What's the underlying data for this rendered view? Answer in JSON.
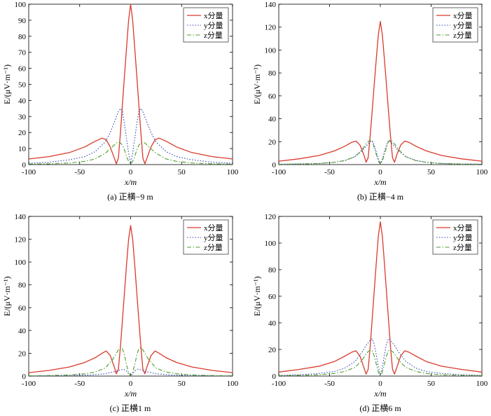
{
  "legend_labels": [
    "x分量",
    "y分量",
    "z分量"
  ],
  "colors": {
    "x": "#d93a2b",
    "y": "#3c4fb4",
    "z": "#4f9e2a"
  },
  "chart_data": [
    {
      "type": "line",
      "caption": "(a) 正横−9 m",
      "xlabel": "x/m",
      "ylabel": "E/(μV·m⁻¹)",
      "xlim": [
        -100,
        100
      ],
      "ylim": [
        0,
        100
      ],
      "xticks": [
        -100,
        -50,
        0,
        50,
        100
      ],
      "yticks": [
        0,
        10,
        20,
        30,
        40,
        50,
        60,
        70,
        80,
        90,
        100
      ],
      "legend": "top-right",
      "grid": false,
      "series": [
        {
          "name": "x分量",
          "style": "solid",
          "x": [
            -100,
            -80,
            -60,
            -45,
            -35,
            -28,
            -24,
            -20,
            -16,
            -14,
            -12,
            -10,
            -8,
            -6,
            -4,
            -2,
            0,
            2,
            4,
            6,
            8,
            10,
            12,
            14,
            16,
            20,
            24,
            28,
            35,
            45,
            60,
            80,
            100
          ],
          "y": [
            3.5,
            5,
            7.5,
            11,
            14.5,
            16.5,
            15.5,
            11,
            4,
            0.5,
            4,
            20,
            38,
            56,
            73,
            90,
            100,
            90,
            73,
            56,
            38,
            20,
            4,
            0.5,
            4,
            11,
            15.5,
            16.5,
            14.5,
            11,
            7.5,
            5,
            3.5
          ]
        },
        {
          "name": "y分量",
          "style": "dotted",
          "x": [
            -100,
            -80,
            -60,
            -45,
            -35,
            -25,
            -20,
            -15,
            -12,
            -10,
            -8,
            -6,
            -4,
            -2,
            0,
            2,
            4,
            6,
            8,
            10,
            12,
            15,
            20,
            25,
            35,
            45,
            60,
            80,
            100
          ],
          "y": [
            0.8,
            1.5,
            3,
            5,
            8,
            14,
            20,
            28,
            33,
            35,
            33,
            25,
            16,
            7,
            1,
            7,
            16,
            25,
            33,
            35,
            33,
            28,
            20,
            14,
            8,
            5,
            3,
            1.5,
            0.8
          ]
        },
        {
          "name": "z分量",
          "style": "dashdot",
          "x": [
            -100,
            -80,
            -60,
            -45,
            -35,
            -25,
            -18,
            -14,
            -12,
            -10,
            -8,
            -6,
            -4,
            -2,
            0,
            2,
            4,
            6,
            8,
            10,
            12,
            14,
            18,
            25,
            35,
            45,
            60,
            80,
            100
          ],
          "y": [
            0.3,
            0.5,
            1,
            2,
            3.5,
            7,
            11,
            13.5,
            14,
            13.5,
            12,
            9,
            5,
            2,
            0.3,
            2,
            5,
            9,
            12,
            13.5,
            14,
            13.5,
            11,
            7,
            3.5,
            2,
            1,
            0.5,
            0.3
          ]
        }
      ]
    },
    {
      "type": "line",
      "caption": "(b) 正横−4 m",
      "xlabel": "x/m",
      "ylabel": "E/(μV·m⁻¹)",
      "xlim": [
        -100,
        100
      ],
      "ylim": [
        0,
        140
      ],
      "xticks": [
        -100,
        -50,
        0,
        50,
        100
      ],
      "yticks": [
        0,
        20,
        40,
        60,
        80,
        100,
        120,
        140
      ],
      "legend": "top-right",
      "grid": false,
      "series": [
        {
          "name": "x分量",
          "style": "solid",
          "x": [
            -100,
            -80,
            -60,
            -45,
            -35,
            -28,
            -24,
            -20,
            -16,
            -14,
            -12,
            -10,
            -8,
            -6,
            -4,
            -2,
            0,
            2,
            4,
            6,
            8,
            10,
            12,
            14,
            16,
            20,
            24,
            28,
            35,
            45,
            60,
            80,
            100
          ],
          "y": [
            3,
            5,
            8,
            12,
            16,
            19.5,
            20.5,
            17,
            8,
            2,
            6,
            25,
            47,
            70,
            92,
            113,
            125,
            113,
            92,
            70,
            47,
            25,
            6,
            2,
            8,
            17,
            20.5,
            19.5,
            16,
            12,
            8,
            5,
            3
          ]
        },
        {
          "name": "y分量",
          "style": "dotted",
          "x": [
            -100,
            -80,
            -60,
            -45,
            -35,
            -25,
            -18,
            -14,
            -10,
            -8,
            -6,
            -4,
            -2,
            0,
            2,
            4,
            6,
            8,
            10,
            14,
            18,
            25,
            35,
            45,
            60,
            80,
            100
          ],
          "y": [
            0.3,
            0.6,
            1,
            2,
            3.5,
            7,
            12,
            16,
            20,
            21,
            17,
            11,
            5,
            0.5,
            5,
            11,
            17,
            21,
            20,
            16,
            12,
            7,
            3.5,
            2,
            1,
            0.6,
            0.3
          ]
        },
        {
          "name": "z分量",
          "style": "dashdot",
          "x": [
            -100,
            -80,
            -60,
            -45,
            -35,
            -25,
            -18,
            -14,
            -12,
            -10,
            -8,
            -6,
            -4,
            -2,
            0,
            2,
            4,
            6,
            8,
            10,
            12,
            14,
            18,
            25,
            35,
            45,
            60,
            80,
            100
          ],
          "y": [
            0.3,
            0.5,
            1,
            2,
            3.5,
            7,
            13,
            18,
            20,
            21.5,
            20,
            15,
            9,
            3,
            0.3,
            3,
            9,
            15,
            20,
            21.5,
            20,
            18,
            13,
            7,
            3.5,
            2,
            1,
            0.5,
            0.3
          ]
        }
      ]
    },
    {
      "type": "line",
      "caption": "(c) 正横1 m",
      "xlabel": "x/m",
      "ylabel": "E/(μV·m⁻¹)",
      "xlim": [
        -100,
        100
      ],
      "ylim": [
        0,
        140
      ],
      "xticks": [
        -100,
        -50,
        0,
        50,
        100
      ],
      "yticks": [
        0,
        20,
        40,
        60,
        80,
        100,
        120,
        140
      ],
      "legend": "top-right",
      "grid": false,
      "series": [
        {
          "name": "x分量",
          "style": "solid",
          "x": [
            -100,
            -80,
            -60,
            -45,
            -35,
            -28,
            -24,
            -20,
            -16,
            -14,
            -12,
            -10,
            -8,
            -6,
            -4,
            -2,
            0,
            2,
            4,
            6,
            8,
            10,
            12,
            14,
            16,
            20,
            24,
            28,
            35,
            45,
            60,
            80,
            100
          ],
          "y": [
            3,
            5,
            8,
            12,
            16,
            20,
            22,
            18,
            8,
            2,
            6,
            26,
            50,
            74,
            98,
            120,
            132,
            120,
            98,
            74,
            50,
            26,
            6,
            2,
            8,
            18,
            22,
            20,
            16,
            12,
            8,
            5,
            3
          ]
        },
        {
          "name": "y分量",
          "style": "dotted",
          "x": [
            -100,
            -80,
            -60,
            -40,
            -25,
            -15,
            -10,
            -7,
            -4,
            -2,
            0,
            2,
            4,
            7,
            10,
            15,
            25,
            40,
            60,
            80,
            100
          ],
          "y": [
            0.1,
            0.2,
            0.4,
            0.9,
            2,
            4,
            5.5,
            6,
            4.5,
            2,
            0.3,
            2,
            4.5,
            6,
            5.5,
            4,
            2,
            0.9,
            0.4,
            0.2,
            0.1
          ]
        },
        {
          "name": "z分量",
          "style": "dashdot",
          "x": [
            -100,
            -80,
            -60,
            -45,
            -35,
            -25,
            -18,
            -14,
            -12,
            -10,
            -8,
            -6,
            -4,
            -2,
            0,
            2,
            4,
            6,
            8,
            10,
            12,
            14,
            18,
            25,
            35,
            45,
            60,
            80,
            100
          ],
          "y": [
            0.3,
            0.5,
            1,
            2,
            3.5,
            7,
            14,
            20,
            23,
            25,
            24,
            18,
            10,
            3,
            0.3,
            3,
            10,
            18,
            24,
            25,
            23,
            20,
            14,
            7,
            3.5,
            2,
            1,
            0.5,
            0.3
          ]
        }
      ]
    },
    {
      "type": "line",
      "caption": "(d) 正横6 m",
      "xlabel": "x/m",
      "ylabel": "E/(μV·m⁻¹)",
      "xlim": [
        -100,
        100
      ],
      "ylim": [
        0,
        120
      ],
      "xticks": [
        -100,
        -50,
        0,
        50,
        100
      ],
      "yticks": [
        0,
        20,
        40,
        60,
        80,
        100,
        120
      ],
      "legend": "top-right",
      "grid": false,
      "series": [
        {
          "name": "x分量",
          "style": "solid",
          "x": [
            -100,
            -80,
            -60,
            -45,
            -35,
            -28,
            -24,
            -20,
            -16,
            -14,
            -12,
            -10,
            -8,
            -6,
            -4,
            -2,
            0,
            2,
            4,
            6,
            8,
            10,
            12,
            14,
            16,
            20,
            24,
            28,
            35,
            45,
            60,
            80,
            100
          ],
          "y": [
            3,
            5,
            7.5,
            11,
            15,
            18,
            19,
            15,
            6,
            1.5,
            5,
            22,
            43,
            64,
            85,
            105,
            116,
            105,
            85,
            64,
            43,
            22,
            5,
            1.5,
            6,
            15,
            19,
            18,
            15,
            11,
            7.5,
            5,
            3
          ]
        },
        {
          "name": "y分量",
          "style": "dotted",
          "x": [
            -100,
            -80,
            -60,
            -45,
            -35,
            -25,
            -18,
            -14,
            -10,
            -8,
            -6,
            -4,
            -2,
            0,
            2,
            4,
            6,
            8,
            10,
            14,
            18,
            25,
            35,
            45,
            60,
            80,
            100
          ],
          "y": [
            0.5,
            1,
            2,
            3.5,
            6,
            11,
            18,
            23,
            27,
            28,
            24,
            16,
            7,
            0.5,
            7,
            16,
            24,
            28,
            27,
            23,
            18,
            11,
            6,
            3.5,
            2,
            1,
            0.5
          ]
        },
        {
          "name": "z分量",
          "style": "dashdot",
          "x": [
            -100,
            -80,
            -60,
            -45,
            -35,
            -25,
            -18,
            -14,
            -12,
            -10,
            -8,
            -6,
            -4,
            -2,
            0,
            2,
            4,
            6,
            8,
            10,
            12,
            14,
            18,
            25,
            35,
            45,
            60,
            80,
            100
          ],
          "y": [
            0.3,
            0.5,
            1,
            2,
            3.5,
            6.5,
            12,
            16.5,
            18.5,
            19.5,
            19,
            15,
            9,
            3,
            0.3,
            3,
            9,
            15,
            19,
            19.5,
            18.5,
            16.5,
            12,
            6.5,
            3.5,
            2,
            1,
            0.5,
            0.3
          ]
        }
      ]
    }
  ]
}
